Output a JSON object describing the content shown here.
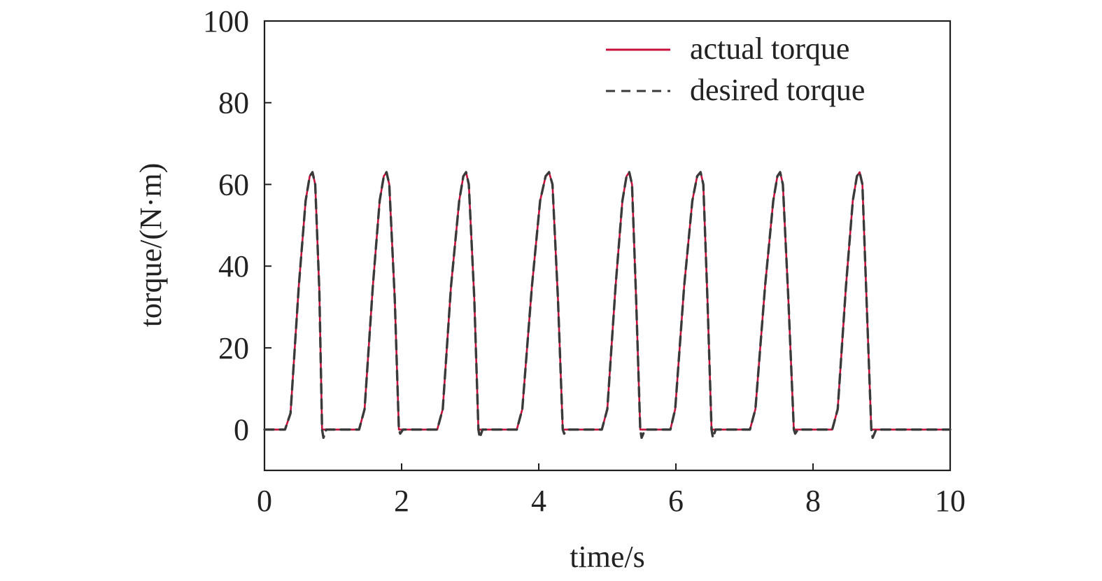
{
  "chart_data": {
    "type": "line",
    "title": "",
    "xlabel": "time/s",
    "ylabel": "torque/(N·m)",
    "xlim": [
      0,
      10
    ],
    "ylim": [
      -10,
      100
    ],
    "x_ticks": [
      0,
      2,
      4,
      6,
      8,
      10
    ],
    "y_ticks": [
      0,
      20,
      40,
      60,
      80,
      100
    ],
    "x_tick_labels": [
      "0",
      "2",
      "4",
      "6",
      "8",
      "10"
    ],
    "y_tick_labels": [
      "0",
      "20",
      "40",
      "60",
      "80",
      "100"
    ],
    "grid": false,
    "legend_position": "top-right",
    "series": [
      {
        "name": "actual torque",
        "color": "#c8103c",
        "line_style": "solid",
        "x": [
          0,
          0.3,
          0.38,
          0.5,
          0.6,
          0.66,
          0.7,
          0.74,
          0.8,
          0.84,
          0.9,
          1.38,
          1.46,
          1.58,
          1.68,
          1.74,
          1.78,
          1.82,
          1.9,
          1.96,
          2.02,
          2.52,
          2.6,
          2.72,
          2.84,
          2.9,
          2.94,
          2.98,
          3.06,
          3.12,
          3.18,
          3.68,
          3.76,
          3.9,
          4.02,
          4.1,
          4.15,
          4.2,
          4.28,
          4.35,
          4.42,
          4.92,
          5.0,
          5.12,
          5.22,
          5.28,
          5.32,
          5.36,
          5.42,
          5.48,
          5.55,
          5.92,
          5.99,
          6.12,
          6.24,
          6.31,
          6.36,
          6.4,
          6.46,
          6.52,
          6.58,
          7.08,
          7.16,
          7.3,
          7.42,
          7.48,
          7.52,
          7.56,
          7.64,
          7.72,
          7.78,
          8.28,
          8.36,
          8.48,
          8.58,
          8.64,
          8.68,
          8.72,
          8.78,
          8.85,
          8.92,
          10
        ],
        "y": [
          0,
          0,
          4,
          35,
          56,
          62,
          63,
          60,
          34,
          0,
          0,
          0,
          5,
          35,
          56,
          62,
          63,
          60,
          32,
          0,
          0,
          0,
          5,
          35,
          56,
          62,
          63,
          60,
          32,
          0,
          0,
          0,
          5,
          35,
          56,
          62,
          63,
          60,
          32,
          0,
          0,
          0,
          5,
          35,
          56,
          62,
          63,
          60,
          32,
          0,
          0,
          0,
          5,
          35,
          56,
          62,
          63,
          60,
          32,
          0,
          0,
          0,
          5,
          35,
          56,
          62,
          63,
          60,
          32,
          0,
          0,
          0,
          5,
          35,
          56,
          62,
          63,
          60,
          32,
          0,
          0,
          0
        ]
      },
      {
        "name": "desired torque",
        "color": "#3a3a3a",
        "line_style": "dashed",
        "x": [
          0,
          0.3,
          0.38,
          0.5,
          0.6,
          0.66,
          0.7,
          0.74,
          0.8,
          0.84,
          0.86,
          0.9,
          1.38,
          1.46,
          1.58,
          1.68,
          1.74,
          1.78,
          1.82,
          1.9,
          1.96,
          1.98,
          2.02,
          2.52,
          2.6,
          2.72,
          2.84,
          2.9,
          2.94,
          2.98,
          3.06,
          3.12,
          3.14,
          3.18,
          3.68,
          3.76,
          3.9,
          4.02,
          4.1,
          4.15,
          4.2,
          4.28,
          4.35,
          4.37,
          4.42,
          4.92,
          5.0,
          5.12,
          5.22,
          5.28,
          5.32,
          5.36,
          5.42,
          5.48,
          5.5,
          5.55,
          5.92,
          5.99,
          6.12,
          6.24,
          6.31,
          6.36,
          6.4,
          6.46,
          6.52,
          6.54,
          6.58,
          7.08,
          7.16,
          7.3,
          7.42,
          7.48,
          7.52,
          7.56,
          7.64,
          7.72,
          7.74,
          7.78,
          8.28,
          8.36,
          8.48,
          8.58,
          8.64,
          8.68,
          8.72,
          8.78,
          8.85,
          8.87,
          8.92,
          10
        ],
        "y": [
          0,
          0,
          4,
          35,
          56,
          62,
          63,
          60,
          34,
          0,
          -2,
          0,
          0,
          5,
          35,
          56,
          62,
          63,
          60,
          32,
          0,
          -1,
          0,
          0,
          5,
          35,
          56,
          62,
          63,
          60,
          32,
          0,
          -2,
          0,
          0,
          5,
          35,
          56,
          62,
          63,
          60,
          32,
          0,
          -1,
          0,
          0,
          5,
          35,
          56,
          62,
          63,
          60,
          32,
          0,
          -2,
          0,
          0,
          5,
          35,
          56,
          62,
          63,
          60,
          32,
          0,
          -2,
          0,
          0,
          5,
          35,
          56,
          62,
          63,
          60,
          32,
          0,
          -1,
          0,
          0,
          5,
          35,
          56,
          62,
          63,
          60,
          32,
          0,
          -2,
          0,
          0
        ]
      }
    ]
  }
}
